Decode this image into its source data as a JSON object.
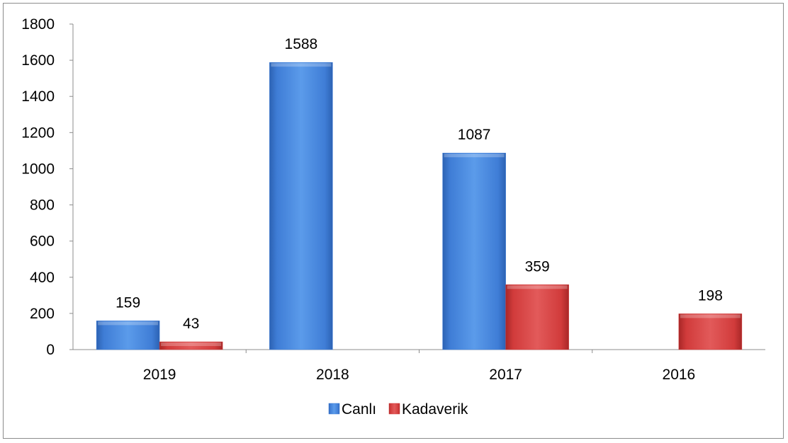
{
  "chart_data": {
    "type": "bar",
    "title": "",
    "xlabel": "",
    "ylabel": "",
    "categories": [
      "2019",
      "2018",
      "2017",
      "2016"
    ],
    "series": [
      {
        "name": "Canlı",
        "color": "#3f7dd6",
        "values": [
          159,
          1588,
          1087,
          null
        ]
      },
      {
        "name": "Kadaverik",
        "color": "#d13b3b",
        "values": [
          43,
          null,
          359,
          198
        ]
      }
    ],
    "ylim": [
      0,
      1800
    ],
    "yticks": [
      0,
      200,
      400,
      600,
      800,
      1000,
      1200,
      1400,
      1600,
      1800
    ],
    "grid": false,
    "legend_position": "bottom",
    "data_labels": true
  }
}
